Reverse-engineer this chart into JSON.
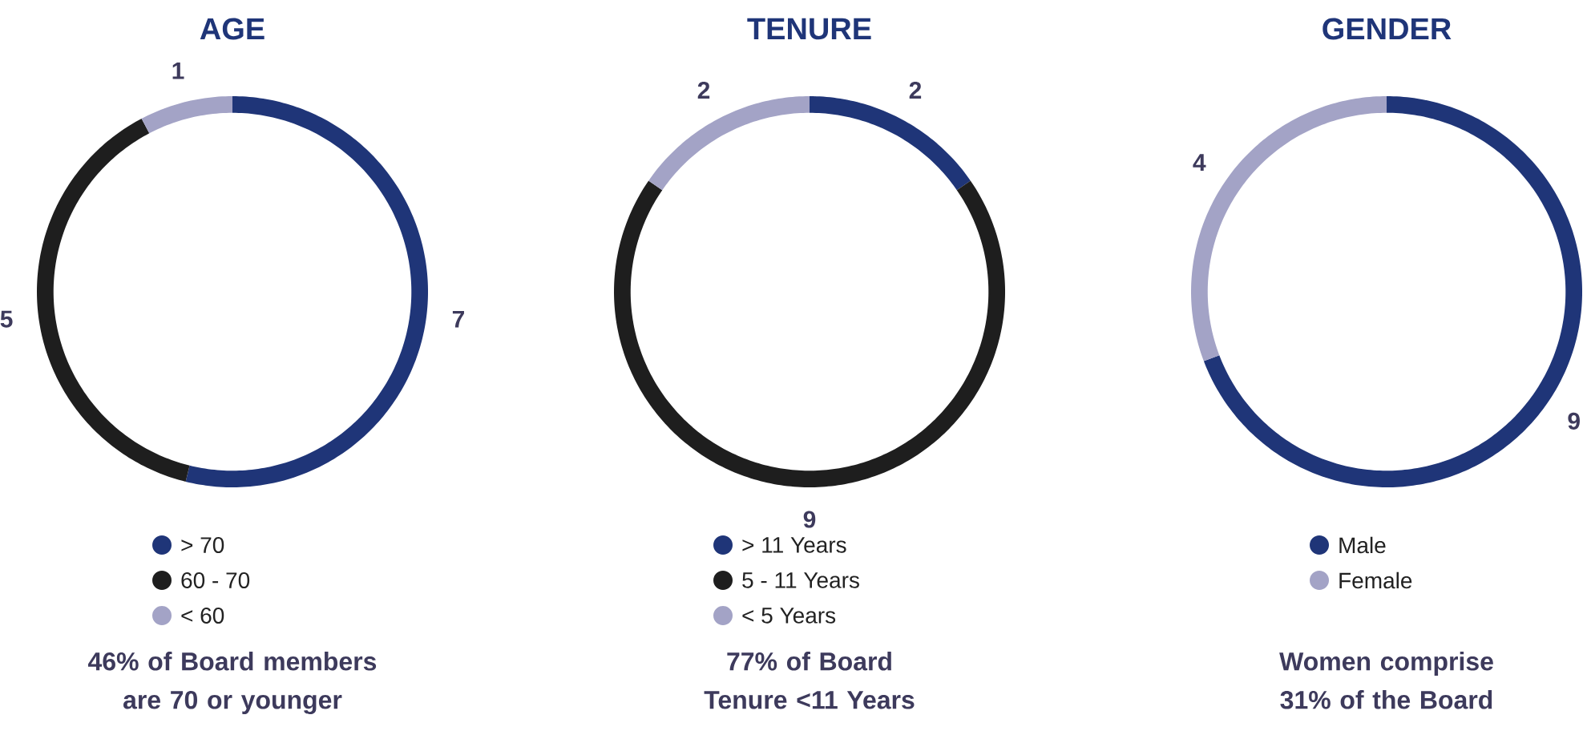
{
  "chart_data": [
    {
      "type": "donut",
      "title": "AGE",
      "categories": [
        "> 70",
        "60 - 70",
        "< 60"
      ],
      "values": [
        7,
        5,
        1
      ],
      "colors": [
        "#1f3578",
        "#1e1e1e",
        "#a3a3c6"
      ],
      "data_labels": true,
      "legend": "bottom",
      "annotations": [
        "46% of Board members are 70 or younger"
      ]
    },
    {
      "type": "donut",
      "title": "TENURE",
      "categories": [
        "> 11 Years",
        "5 - 11 Years",
        "< 5 Years"
      ],
      "values": [
        2,
        9,
        2
      ],
      "colors": [
        "#1f3578",
        "#1e1e1e",
        "#a3a3c6"
      ],
      "data_labels": true,
      "legend": "bottom",
      "annotations": [
        "77% of Board Tenure <11 Years"
      ]
    },
    {
      "type": "donut",
      "title": "GENDER",
      "categories": [
        "Male",
        "Female"
      ],
      "values": [
        9,
        4
      ],
      "colors": [
        "#1f3578",
        "#a3a3c6"
      ],
      "data_labels": true,
      "legend": "bottom",
      "annotations": [
        "Women comprise 31% of the Board"
      ]
    }
  ]
}
